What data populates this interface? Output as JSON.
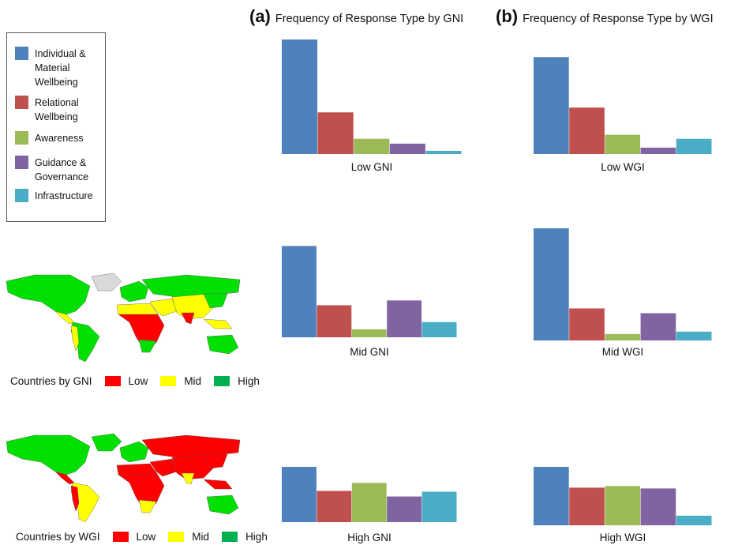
{
  "panels": {
    "a": {
      "letter": "(a)",
      "title": "Frequency of Response Type by GNI"
    },
    "b": {
      "letter": "(b)",
      "title": "Frequency of Response Type by WGI"
    }
  },
  "legend": [
    {
      "label": "Individual & Material Wellbeing",
      "color": "#4f81bd"
    },
    {
      "label": "Relational Wellbeing",
      "color": "#c0504d"
    },
    {
      "label": "Awareness",
      "color": "#9bbb59"
    },
    {
      "label": "Guidance & Governance",
      "color": "#8064a2"
    },
    {
      "label": "Infrastructure",
      "color": "#4bacc6"
    }
  ],
  "chart_data": [
    {
      "type": "bar",
      "title": "Low GNI",
      "categories": [
        "Individual & Material Wellbeing",
        "Relational Wellbeing",
        "Awareness",
        "Guidance & Governance",
        "Infrastructure"
      ],
      "values": [
        143,
        52,
        19,
        13,
        4
      ],
      "ylim": [
        0,
        143
      ],
      "grid": false
    },
    {
      "type": "bar",
      "title": "Low WGI",
      "categories": [
        "Individual & Material Wellbeing",
        "Relational Wellbeing",
        "Awareness",
        "Guidance & Governance",
        "Infrastructure"
      ],
      "values": [
        121,
        58,
        24,
        8,
        19
      ],
      "ylim": [
        0,
        143
      ],
      "grid": false
    },
    {
      "type": "bar",
      "title": "Mid GNI",
      "categories": [
        "Individual & Material Wellbeing",
        "Relational Wellbeing",
        "Awareness",
        "Guidance & Governance",
        "Infrastructure"
      ],
      "values": [
        114,
        40,
        10,
        46,
        19
      ],
      "ylim": [
        0,
        143
      ],
      "grid": false
    },
    {
      "type": "bar",
      "title": "Mid WGI",
      "categories": [
        "Individual & Material Wellbeing",
        "Relational Wellbeing",
        "Awareness",
        "Guidance & Governance",
        "Infrastructure"
      ],
      "values": [
        140,
        40,
        8,
        34,
        11
      ],
      "ylim": [
        0,
        143
      ],
      "grid": false
    },
    {
      "type": "bar",
      "title": "High GNI",
      "categories": [
        "Individual & Material Wellbeing",
        "Relational Wellbeing",
        "Awareness",
        "Guidance & Governance",
        "Infrastructure"
      ],
      "values": [
        69,
        39,
        49,
        32,
        38
      ],
      "ylim": [
        0,
        143
      ],
      "grid": false
    },
    {
      "type": "bar",
      "title": "High WGI",
      "categories": [
        "Individual & Material Wellbeing",
        "Relational Wellbeing",
        "Awareness",
        "Guidance & Governance",
        "Infrastructure"
      ],
      "values": [
        73,
        47,
        49,
        46,
        12
      ],
      "ylim": [
        0,
        143
      ],
      "grid": false
    }
  ],
  "maps": [
    {
      "caption": "Countries by GNI",
      "classes": [
        {
          "label": "Low",
          "color": "#ff0000"
        },
        {
          "label": "Mid",
          "color": "#ffff00"
        },
        {
          "label": "High",
          "color": "#00b050"
        }
      ]
    },
    {
      "caption": "Countries by WGI",
      "classes": [
        {
          "label": "Low",
          "color": "#ff0000"
        },
        {
          "label": "Mid",
          "color": "#ffff00"
        },
        {
          "label": "High",
          "color": "#00b050"
        }
      ]
    }
  ]
}
